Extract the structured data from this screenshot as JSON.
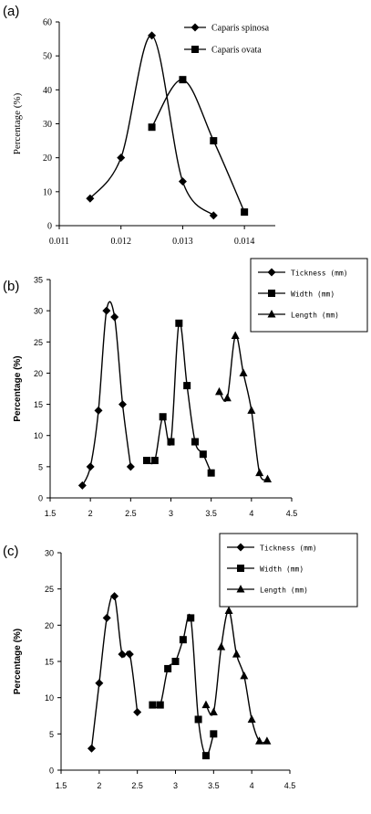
{
  "chart_data": [
    {
      "type": "line",
      "panel_label": "(a)",
      "title": "",
      "xlabel": "",
      "ylabel": "Percentage (%)",
      "xlim": [
        0.011,
        0.0145
      ],
      "ylim": [
        0,
        60
      ],
      "x_ticks": [
        "0.011",
        "0.012",
        "0.013",
        "0.014"
      ],
      "y_ticks": [
        "0",
        "10",
        "20",
        "30",
        "40",
        "50",
        "60"
      ],
      "legend_position": "top-right",
      "series": [
        {
          "name": "Caparis spinosa",
          "marker": "diamond",
          "x": [
            0.0115,
            0.012,
            0.0125,
            0.013,
            0.0135
          ],
          "y": [
            8,
            20,
            56,
            13,
            3
          ]
        },
        {
          "name": "Caparis ovata",
          "marker": "square",
          "x": [
            0.0125,
            0.013,
            0.0135,
            0.014
          ],
          "y": [
            29,
            43,
            25,
            4
          ]
        }
      ]
    },
    {
      "type": "line",
      "panel_label": "(b)",
      "title": "",
      "xlabel": "",
      "ylabel": "Percentage (%)",
      "xlim": [
        1.5,
        4.5
      ],
      "ylim": [
        0,
        35
      ],
      "x_ticks": [
        "1.5",
        "2",
        "2.5",
        "3",
        "3.5",
        "4",
        "4.5"
      ],
      "y_ticks": [
        "0",
        "5",
        "10",
        "15",
        "20",
        "25",
        "30",
        "35"
      ],
      "legend_position": "top-right",
      "series": [
        {
          "name": "Tickness (mm)",
          "marker": "diamond",
          "x": [
            1.9,
            2.0,
            2.1,
            2.2,
            2.3,
            2.4,
            2.5
          ],
          "y": [
            2,
            5,
            14,
            30,
            29,
            15,
            5
          ]
        },
        {
          "name": "Width (mm)",
          "marker": "square",
          "x": [
            2.7,
            2.8,
            2.9,
            3.0,
            3.1,
            3.2,
            3.3,
            3.4,
            3.5
          ],
          "y": [
            6,
            6,
            13,
            9,
            28,
            18,
            9,
            7,
            4
          ]
        },
        {
          "name": "Length (mm)",
          "marker": "triangle",
          "x": [
            3.6,
            3.7,
            3.8,
            3.9,
            4.0,
            4.1,
            4.2
          ],
          "y": [
            17,
            16,
            26,
            20,
            14,
            4,
            3
          ]
        }
      ]
    },
    {
      "type": "line",
      "panel_label": "(c)",
      "title": "",
      "xlabel": "",
      "ylabel": "Percentage (%)",
      "xlim": [
        1.5,
        4.5
      ],
      "ylim": [
        0,
        30
      ],
      "x_ticks": [
        "1.5",
        "2",
        "2.5",
        "3",
        "3.5",
        "4",
        "4.5"
      ],
      "y_ticks": [
        "0",
        "5",
        "10",
        "15",
        "20",
        "25",
        "30"
      ],
      "legend_position": "top-right",
      "series": [
        {
          "name": "Tickness (mm)",
          "marker": "diamond",
          "x": [
            1.9,
            2.0,
            2.1,
            2.2,
            2.3,
            2.4,
            2.5
          ],
          "y": [
            3,
            12,
            21,
            24,
            16,
            16,
            8
          ]
        },
        {
          "name": "Width (mm)",
          "marker": "square",
          "x": [
            2.7,
            2.8,
            2.9,
            3.0,
            3.1,
            3.2,
            3.3,
            3.4,
            3.5
          ],
          "y": [
            9,
            9,
            14,
            15,
            18,
            21,
            7,
            2,
            5
          ]
        },
        {
          "name": "Length (mm)",
          "marker": "triangle",
          "x": [
            3.4,
            3.5,
            3.6,
            3.7,
            3.8,
            3.9,
            4.0,
            4.1,
            4.2
          ],
          "y": [
            9,
            8,
            17,
            22,
            16,
            13,
            7,
            4,
            4
          ]
        }
      ]
    }
  ]
}
